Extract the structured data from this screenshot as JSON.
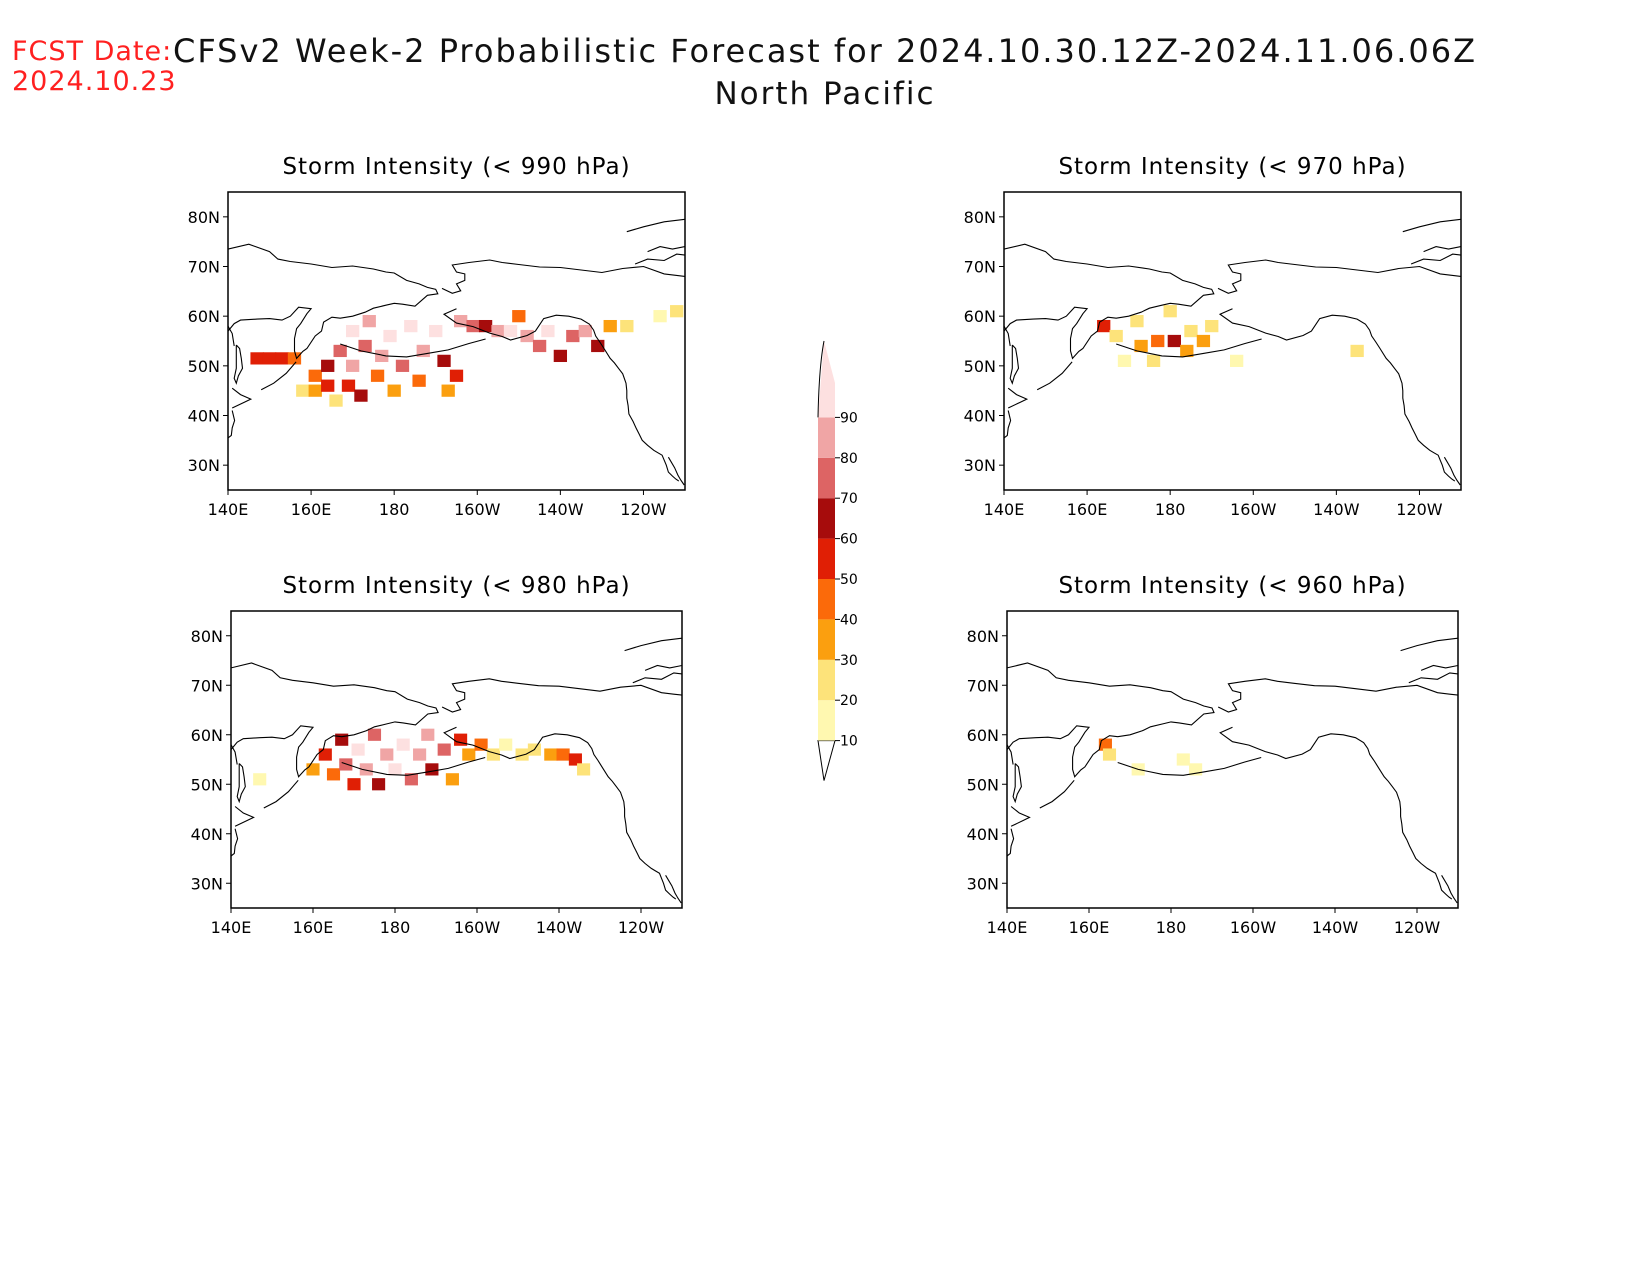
{
  "fcst_label": "FCST Date:",
  "fcst_date": "2024.10.23",
  "title_line1": "CFSv2 Week-2 Probabilistic Forecast for 2024.10.30.12Z-2024.11.06.06Z",
  "title_line2": "North Pacific",
  "lat_labels": [
    "80N",
    "70N",
    "60N",
    "50N",
    "40N",
    "30N"
  ],
  "lon_labels": [
    "140E",
    "160E",
    "180",
    "160W",
    "140W",
    "120W"
  ],
  "colorbar": {
    "levels": [
      "10",
      "20",
      "30",
      "40",
      "50",
      "60",
      "70",
      "80",
      "90"
    ],
    "colors": [
      "#fff8b0",
      "#fde37a",
      "#fb9f0f",
      "#fb6a0a",
      "#e01f05",
      "#a60c0c",
      "#dd6464",
      "#f0a5a5",
      "#fde0e0"
    ]
  },
  "panels": [
    {
      "title": "Storm Intensity (< 990 hPa)",
      "cells": [
        {
          "lon": 147,
          "lat": 51.5,
          "level": 5
        },
        {
          "lon": 150,
          "lat": 51.5,
          "level": 5
        },
        {
          "lon": 153,
          "lat": 51.5,
          "level": 5
        },
        {
          "lon": 156,
          "lat": 51.5,
          "level": 4
        },
        {
          "lon": 158,
          "lat": 45,
          "level": 2
        },
        {
          "lon": 161,
          "lat": 45,
          "level": 3
        },
        {
          "lon": 161,
          "lat": 48,
          "level": 4
        },
        {
          "lon": 164,
          "lat": 46,
          "level": 5
        },
        {
          "lon": 164,
          "lat": 50,
          "level": 6
        },
        {
          "lon": 166,
          "lat": 43,
          "level": 2
        },
        {
          "lon": 167,
          "lat": 53,
          "level": 7
        },
        {
          "lon": 169,
          "lat": 46,
          "level": 5
        },
        {
          "lon": 170,
          "lat": 50,
          "level": 8
        },
        {
          "lon": 170,
          "lat": 57,
          "level": 9
        },
        {
          "lon": 172,
          "lat": 44,
          "level": 6
        },
        {
          "lon": 173,
          "lat": 54,
          "level": 7
        },
        {
          "lon": 174,
          "lat": 59,
          "level": 8
        },
        {
          "lon": 176,
          "lat": 48,
          "level": 4
        },
        {
          "lon": 177,
          "lat": 52,
          "level": 8
        },
        {
          "lon": 179,
          "lat": 56,
          "level": 9
        },
        {
          "lon": 180,
          "lat": 45,
          "level": 3
        },
        {
          "lon": 182,
          "lat": 50,
          "level": 7
        },
        {
          "lon": 184,
          "lat": 58,
          "level": 9
        },
        {
          "lon": 186,
          "lat": 47,
          "level": 4
        },
        {
          "lon": 187,
          "lat": 53,
          "level": 8
        },
        {
          "lon": 190,
          "lat": 57,
          "level": 9
        },
        {
          "lon": 192,
          "lat": 51,
          "level": 6
        },
        {
          "lon": 193,
          "lat": 45,
          "level": 3
        },
        {
          "lon": 195,
          "lat": 48,
          "level": 5
        },
        {
          "lon": 196,
          "lat": 59,
          "level": 8
        },
        {
          "lon": 199,
          "lat": 58,
          "level": 7
        },
        {
          "lon": 202,
          "lat": 58,
          "level": 6
        },
        {
          "lon": 205,
          "lat": 57,
          "level": 8
        },
        {
          "lon": 208,
          "lat": 57,
          "level": 9
        },
        {
          "lon": 210,
          "lat": 60,
          "level": 4
        },
        {
          "lon": 212,
          "lat": 56,
          "level": 8
        },
        {
          "lon": 215,
          "lat": 54,
          "level": 7
        },
        {
          "lon": 217,
          "lat": 57,
          "level": 9
        },
        {
          "lon": 220,
          "lat": 52,
          "level": 6
        },
        {
          "lon": 223,
          "lat": 56,
          "level": 7
        },
        {
          "lon": 226,
          "lat": 57,
          "level": 8
        },
        {
          "lon": 229,
          "lat": 54,
          "level": 6
        },
        {
          "lon": 232,
          "lat": 58,
          "level": 3
        },
        {
          "lon": 236,
          "lat": 58,
          "level": 2
        },
        {
          "lon": 244,
          "lat": 60,
          "level": 1
        },
        {
          "lon": 248,
          "lat": 61,
          "level": 2
        }
      ]
    },
    {
      "title": "Storm Intensity (< 970 hPa)",
      "cells": [
        {
          "lon": 164,
          "lat": 58,
          "level": 5
        },
        {
          "lon": 167,
          "lat": 56,
          "level": 2
        },
        {
          "lon": 169,
          "lat": 51,
          "level": 1
        },
        {
          "lon": 172,
          "lat": 59,
          "level": 2
        },
        {
          "lon": 173,
          "lat": 54,
          "level": 3
        },
        {
          "lon": 176,
          "lat": 51,
          "level": 2
        },
        {
          "lon": 177,
          "lat": 55,
          "level": 4
        },
        {
          "lon": 180,
          "lat": 61,
          "level": 2
        },
        {
          "lon": 181,
          "lat": 55,
          "level": 6
        },
        {
          "lon": 184,
          "lat": 53,
          "level": 3
        },
        {
          "lon": 185,
          "lat": 57,
          "level": 2
        },
        {
          "lon": 188,
          "lat": 55,
          "level": 3
        },
        {
          "lon": 190,
          "lat": 58,
          "level": 2
        },
        {
          "lon": 196,
          "lat": 51,
          "level": 1
        },
        {
          "lon": 225,
          "lat": 53,
          "level": 2
        }
      ]
    },
    {
      "title": "Storm Intensity (< 980 hPa)",
      "cells": [
        {
          "lon": 147,
          "lat": 51,
          "level": 1
        },
        {
          "lon": 160,
          "lat": 53,
          "level": 3
        },
        {
          "lon": 163,
          "lat": 56,
          "level": 5
        },
        {
          "lon": 165,
          "lat": 52,
          "level": 4
        },
        {
          "lon": 167,
          "lat": 59,
          "level": 6
        },
        {
          "lon": 168,
          "lat": 54,
          "level": 7
        },
        {
          "lon": 170,
          "lat": 50,
          "level": 5
        },
        {
          "lon": 171,
          "lat": 57,
          "level": 9
        },
        {
          "lon": 173,
          "lat": 53,
          "level": 8
        },
        {
          "lon": 175,
          "lat": 60,
          "level": 7
        },
        {
          "lon": 176,
          "lat": 50,
          "level": 6
        },
        {
          "lon": 178,
          "lat": 56,
          "level": 8
        },
        {
          "lon": 180,
          "lat": 53,
          "level": 9
        },
        {
          "lon": 182,
          "lat": 58,
          "level": 9
        },
        {
          "lon": 184,
          "lat": 51,
          "level": 7
        },
        {
          "lon": 186,
          "lat": 56,
          "level": 8
        },
        {
          "lon": 188,
          "lat": 60,
          "level": 8
        },
        {
          "lon": 189,
          "lat": 53,
          "level": 6
        },
        {
          "lon": 192,
          "lat": 57,
          "level": 7
        },
        {
          "lon": 194,
          "lat": 51,
          "level": 3
        },
        {
          "lon": 196,
          "lat": 59,
          "level": 5
        },
        {
          "lon": 198,
          "lat": 56,
          "level": 3
        },
        {
          "lon": 201,
          "lat": 58,
          "level": 4
        },
        {
          "lon": 204,
          "lat": 56,
          "level": 2
        },
        {
          "lon": 207,
          "lat": 58,
          "level": 1
        },
        {
          "lon": 211,
          "lat": 56,
          "level": 2
        },
        {
          "lon": 214,
          "lat": 57,
          "level": 2
        },
        {
          "lon": 218,
          "lat": 56,
          "level": 3
        },
        {
          "lon": 221,
          "lat": 56,
          "level": 4
        },
        {
          "lon": 224,
          "lat": 55,
          "level": 5
        },
        {
          "lon": 226,
          "lat": 53,
          "level": 2
        }
      ]
    },
    {
      "title": "Storm Intensity (< 960 hPa)",
      "cells": [
        {
          "lon": 164,
          "lat": 58,
          "level": 4
        },
        {
          "lon": 165,
          "lat": 56,
          "level": 2
        },
        {
          "lon": 172,
          "lat": 53,
          "level": 1
        },
        {
          "lon": 183,
          "lat": 55,
          "level": 1
        },
        {
          "lon": 186,
          "lat": 53,
          "level": 1
        }
      ]
    }
  ]
}
